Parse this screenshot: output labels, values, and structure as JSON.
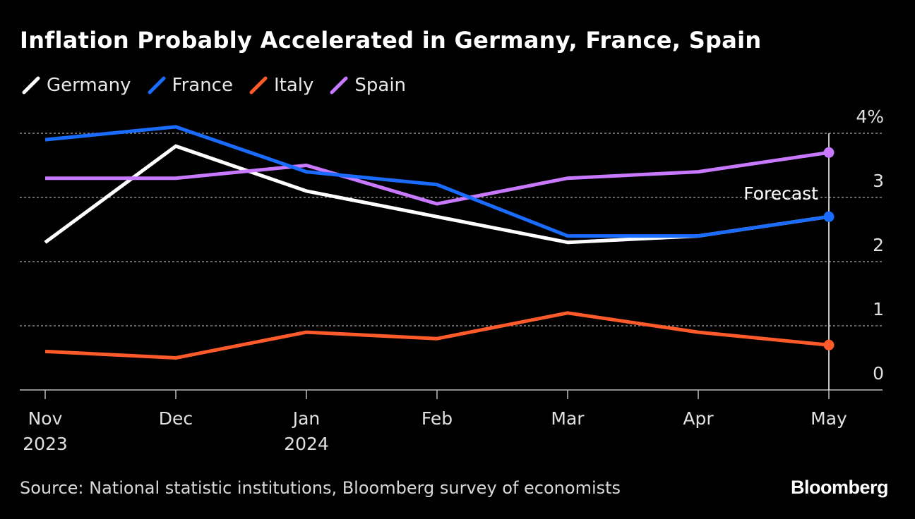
{
  "title": "Inflation Probably Accelerated in Germany, France, Spain",
  "source": "Source: National statistic institutions, Bloomberg survey of economists",
  "logo": "Bloomberg",
  "chart_data": {
    "type": "line",
    "title": "Inflation Probably Accelerated in Germany, France, Spain",
    "categories": [
      "Nov",
      "Dec",
      "Jan",
      "Feb",
      "Mar",
      "Apr",
      "May"
    ],
    "category_years": [
      "2023",
      "",
      "2024",
      "",
      "",
      "",
      ""
    ],
    "y_ticks": [
      "0",
      "1",
      "2",
      "3",
      "4%"
    ],
    "y_tick_values": [
      0,
      1,
      2,
      3,
      4
    ],
    "ylim": [
      0,
      4
    ],
    "grid": true,
    "legend_position": "top-left",
    "annotation": "Forecast",
    "series": [
      {
        "name": "Germany",
        "color": "#ffffff",
        "values": [
          2.3,
          3.8,
          3.1,
          2.7,
          2.3,
          2.4,
          2.7
        ]
      },
      {
        "name": "France",
        "color": "#1a6cff",
        "values": [
          3.9,
          4.1,
          3.4,
          3.2,
          2.4,
          2.4,
          2.7
        ]
      },
      {
        "name": "Italy",
        "color": "#ff5a29",
        "values": [
          0.6,
          0.5,
          0.9,
          0.8,
          1.2,
          0.9,
          0.7
        ]
      },
      {
        "name": "Spain",
        "color": "#c879ff",
        "values": [
          3.3,
          3.3,
          3.5,
          2.9,
          3.3,
          3.4,
          3.7
        ]
      }
    ]
  }
}
